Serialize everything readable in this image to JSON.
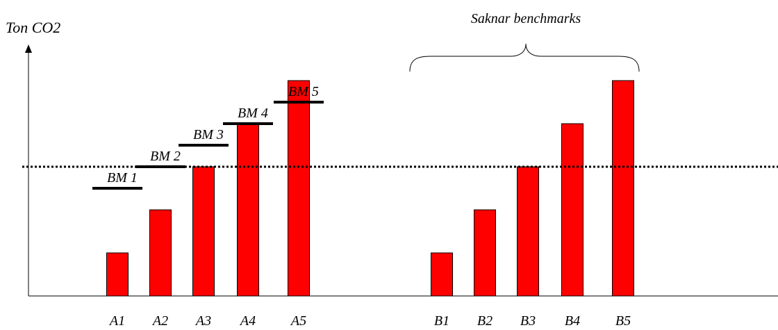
{
  "ylabel": "Ton CO2",
  "brace_label": "Saknar benchmarks",
  "colors": {
    "bar": "#ff0000",
    "bar_outline": "#000000",
    "line": "#000000"
  },
  "chart_data": {
    "type": "bar",
    "ylabel": "Ton CO2",
    "groups": [
      {
        "name": "A",
        "categories": [
          "A1",
          "A2",
          "A3",
          "A4",
          "A5"
        ],
        "values": [
          1,
          2,
          3,
          4,
          5
        ],
        "benchmarks": [
          {
            "label": "BM 1",
            "value": 2.5
          },
          {
            "label": "BM 2",
            "value": 3.0
          },
          {
            "label": "BM 3",
            "value": 3.5
          },
          {
            "label": "BM 4",
            "value": 4.0
          },
          {
            "label": "BM 5",
            "value": 4.5
          }
        ]
      },
      {
        "name": "B",
        "categories": [
          "B1",
          "B2",
          "B3",
          "B4",
          "B5"
        ],
        "values": [
          1,
          2,
          3,
          4,
          5
        ],
        "benchmarks": []
      }
    ],
    "reference_line": {
      "value": 3.0,
      "style": "dotted"
    },
    "annotations": [
      {
        "text": "Saknar benchmarks",
        "covers": "B1-B5",
        "shape": "brace"
      }
    ],
    "ylim": [
      0,
      5.1
    ],
    "grid": false
  }
}
